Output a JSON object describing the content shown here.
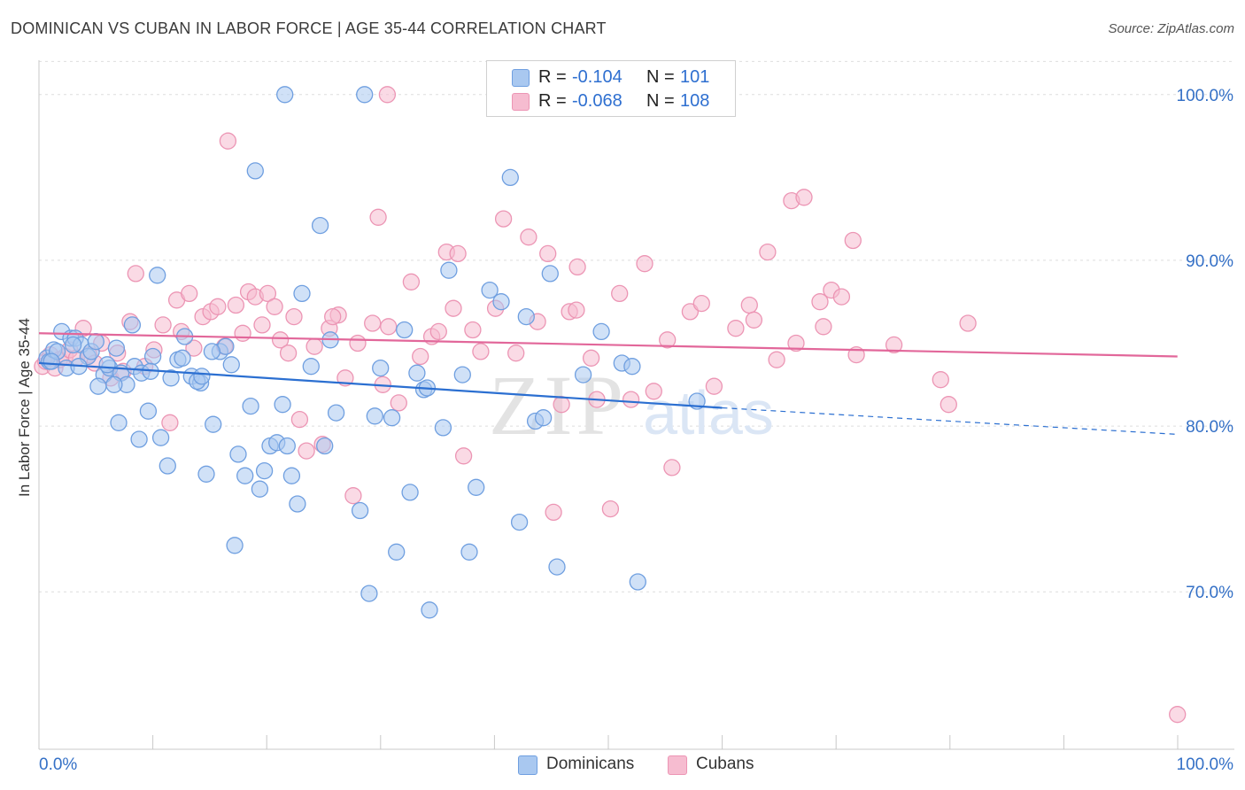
{
  "header": {
    "title": "DOMINICAN VS CUBAN IN LABOR FORCE | AGE 35-44 CORRELATION CHART",
    "source": "Source: ZipAtlas.com"
  },
  "watermark": {
    "zip": "ZIP",
    "atlas": "atlas"
  },
  "legend": {
    "r_label": "R =",
    "n_label": "N =",
    "entries": [
      {
        "name": "Dominicans",
        "r": "-0.104",
        "n": "101"
      },
      {
        "name": "Cubans",
        "r": "-0.068",
        "n": "108"
      }
    ]
  },
  "colors": {
    "dominican_fill": "#a9c8f0",
    "dominican_stroke": "#6f9fe0",
    "dominican_line": "#2b6fd1",
    "cuban_fill": "#f6bcd0",
    "cuban_stroke": "#ec95b4",
    "cuban_line": "#e2679a",
    "axis_text": "#3470c6"
  },
  "chart_data": {
    "type": "scatter",
    "title": "DOMINICAN VS CUBAN IN LABOR FORCE | AGE 35-44 CORRELATION CHART",
    "xlabel": "",
    "ylabel": "In Labor Force | Age 35-44",
    "xlim": [
      0,
      105
    ],
    "ylim": [
      60.5,
      102.5
    ],
    "x_tick_labels": [
      "0.0%",
      "100.0%"
    ],
    "y_ticks": [
      70,
      80,
      90,
      100
    ],
    "y_tick_labels": [
      "70.0%",
      "80.0%",
      "90.0%",
      "100.0%"
    ],
    "grid": true,
    "series": [
      {
        "name": "Dominicans",
        "r": -0.104,
        "n": 101,
        "trend": {
          "x0": 0,
          "y0": 83.8,
          "x1": 60,
          "y1": 81.1,
          "dashed_to_x": 100,
          "dashed_to_y": 79.5
        },
        "points": [
          [
            0.7,
            84.1
          ],
          [
            0.9,
            83.9
          ],
          [
            1.3,
            84.6
          ],
          [
            1.6,
            84.5
          ],
          [
            2.0,
            85.7
          ],
          [
            2.4,
            83.5
          ],
          [
            2.8,
            85.3
          ],
          [
            3.2,
            85.3
          ],
          [
            3.7,
            84.9
          ],
          [
            4.3,
            84.2
          ],
          [
            4.6,
            84.5
          ],
          [
            5.0,
            85.1
          ],
          [
            5.7,
            83.1
          ],
          [
            6.2,
            83.5
          ],
          [
            6.8,
            84.7
          ],
          [
            7.2,
            83.2
          ],
          [
            7.7,
            82.5
          ],
          [
            8.4,
            83.6
          ],
          [
            9.0,
            83.2
          ],
          [
            10.0,
            84.2
          ],
          [
            5.2,
            82.4
          ],
          [
            6.6,
            82.5
          ],
          [
            7.0,
            80.2
          ],
          [
            8.8,
            79.2
          ],
          [
            9.6,
            80.9
          ],
          [
            10.7,
            79.3
          ],
          [
            11.3,
            77.6
          ],
          [
            12.2,
            84.0
          ],
          [
            12.8,
            85.4
          ],
          [
            13.4,
            83.0
          ],
          [
            14.2,
            82.6
          ],
          [
            14.7,
            77.1
          ],
          [
            15.3,
            80.1
          ],
          [
            15.9,
            84.5
          ],
          [
            16.4,
            84.8
          ],
          [
            16.9,
            83.7
          ],
          [
            17.5,
            78.3
          ],
          [
            18.1,
            77.0
          ],
          [
            18.6,
            81.2
          ],
          [
            19.4,
            76.2
          ],
          [
            19.8,
            77.3
          ],
          [
            20.3,
            78.8
          ],
          [
            20.9,
            79.0
          ],
          [
            21.4,
            81.3
          ],
          [
            21.8,
            78.8
          ],
          [
            22.2,
            77.0
          ],
          [
            22.7,
            75.3
          ],
          [
            23.1,
            88.0
          ],
          [
            23.9,
            83.6
          ],
          [
            24.7,
            92.1
          ],
          [
            25.6,
            85.2
          ],
          [
            26.1,
            80.8
          ],
          [
            28.2,
            74.9
          ],
          [
            29.0,
            69.9
          ],
          [
            29.5,
            80.6
          ],
          [
            30.0,
            83.5
          ],
          [
            31.0,
            80.5
          ],
          [
            32.1,
            85.8
          ],
          [
            32.6,
            76.0
          ],
          [
            33.2,
            83.2
          ],
          [
            33.8,
            82.2
          ],
          [
            34.3,
            68.9
          ],
          [
            35.5,
            79.9
          ],
          [
            36.0,
            89.4
          ],
          [
            37.2,
            83.1
          ],
          [
            37.8,
            72.4
          ],
          [
            38.4,
            76.3
          ],
          [
            39.6,
            88.2
          ],
          [
            40.6,
            87.5
          ],
          [
            41.4,
            95.0
          ],
          [
            42.2,
            74.2
          ],
          [
            42.8,
            86.6
          ],
          [
            43.6,
            80.3
          ],
          [
            44.3,
            80.5
          ],
          [
            44.9,
            89.2
          ],
          [
            45.5,
            71.5
          ],
          [
            47.8,
            83.1
          ],
          [
            49.4,
            85.7
          ],
          [
            51.2,
            83.8
          ],
          [
            52.1,
            83.6
          ],
          [
            52.6,
            70.6
          ],
          [
            57.8,
            81.5
          ],
          [
            28.6,
            100.0
          ],
          [
            21.6,
            100.0
          ],
          [
            19.0,
            95.4
          ],
          [
            10.4,
            89.1
          ],
          [
            11.6,
            82.9
          ],
          [
            13.9,
            82.7
          ],
          [
            17.2,
            72.8
          ],
          [
            9.8,
            83.3
          ],
          [
            8.2,
            86.1
          ],
          [
            3.0,
            84.9
          ],
          [
            3.5,
            83.6
          ],
          [
            1.1,
            83.9
          ],
          [
            34.1,
            82.3
          ],
          [
            12.6,
            84.1
          ],
          [
            15.2,
            84.5
          ],
          [
            25.1,
            78.8
          ],
          [
            14.3,
            83.0
          ],
          [
            6.0,
            83.7
          ],
          [
            31.4,
            72.4
          ]
        ]
      },
      {
        "name": "Cubans",
        "r": -0.068,
        "n": 108,
        "trend": {
          "x0": 0,
          "y0": 85.6,
          "x1": 100,
          "y1": 84.2
        },
        "points": [
          [
            0.3,
            83.6
          ],
          [
            0.6,
            83.9
          ],
          [
            1.0,
            84.3
          ],
          [
            1.4,
            83.5
          ],
          [
            1.8,
            84.0
          ],
          [
            2.3,
            84.2
          ],
          [
            2.7,
            84.6
          ],
          [
            3.3,
            84.1
          ],
          [
            3.9,
            85.9
          ],
          [
            4.4,
            84.3
          ],
          [
            4.9,
            83.8
          ],
          [
            5.5,
            85.0
          ],
          [
            6.3,
            82.9
          ],
          [
            6.9,
            84.4
          ],
          [
            7.4,
            83.3
          ],
          [
            8.0,
            86.3
          ],
          [
            8.5,
            89.2
          ],
          [
            9.3,
            83.6
          ],
          [
            10.1,
            84.6
          ],
          [
            10.9,
            86.1
          ],
          [
            11.5,
            80.2
          ],
          [
            12.1,
            87.6
          ],
          [
            12.5,
            85.7
          ],
          [
            13.2,
            88.0
          ],
          [
            13.6,
            84.7
          ],
          [
            14.4,
            86.6
          ],
          [
            15.1,
            86.9
          ],
          [
            15.7,
            87.2
          ],
          [
            16.3,
            84.8
          ],
          [
            16.6,
            97.2
          ],
          [
            17.3,
            87.3
          ],
          [
            17.9,
            85.6
          ],
          [
            18.4,
            88.1
          ],
          [
            19.0,
            87.8
          ],
          [
            19.6,
            86.1
          ],
          [
            20.1,
            88.0
          ],
          [
            20.7,
            87.2
          ],
          [
            21.2,
            85.2
          ],
          [
            21.9,
            84.4
          ],
          [
            22.4,
            86.6
          ],
          [
            22.9,
            80.4
          ],
          [
            23.5,
            78.5
          ],
          [
            24.2,
            84.8
          ],
          [
            24.9,
            78.9
          ],
          [
            25.5,
            85.9
          ],
          [
            26.3,
            86.7
          ],
          [
            26.9,
            82.9
          ],
          [
            27.6,
            75.8
          ],
          [
            28.0,
            85.0
          ],
          [
            29.3,
            86.2
          ],
          [
            29.8,
            92.6
          ],
          [
            30.2,
            82.5
          ],
          [
            30.7,
            86.0
          ],
          [
            31.6,
            81.4
          ],
          [
            32.7,
            88.7
          ],
          [
            33.5,
            84.2
          ],
          [
            34.5,
            85.4
          ],
          [
            35.1,
            85.7
          ],
          [
            35.8,
            90.5
          ],
          [
            36.4,
            87.1
          ],
          [
            36.8,
            90.4
          ],
          [
            37.3,
            78.2
          ],
          [
            38.1,
            85.8
          ],
          [
            38.8,
            84.5
          ],
          [
            40.1,
            87.1
          ],
          [
            40.8,
            92.5
          ],
          [
            41.9,
            84.4
          ],
          [
            43.0,
            91.4
          ],
          [
            43.8,
            86.3
          ],
          [
            44.7,
            90.4
          ],
          [
            45.2,
            74.8
          ],
          [
            45.9,
            81.3
          ],
          [
            46.6,
            86.9
          ],
          [
            47.3,
            89.6
          ],
          [
            48.5,
            84.1
          ],
          [
            49.0,
            81.6
          ],
          [
            50.2,
            75.0
          ],
          [
            51.0,
            88.0
          ],
          [
            52.0,
            81.6
          ],
          [
            53.2,
            89.8
          ],
          [
            54.0,
            82.1
          ],
          [
            55.2,
            85.2
          ],
          [
            55.6,
            77.5
          ],
          [
            57.2,
            86.9
          ],
          [
            58.2,
            87.4
          ],
          [
            59.3,
            82.4
          ],
          [
            61.2,
            85.9
          ],
          [
            62.4,
            87.3
          ],
          [
            62.8,
            86.4
          ],
          [
            64.0,
            90.5
          ],
          [
            64.8,
            84.0
          ],
          [
            66.1,
            93.6
          ],
          [
            66.5,
            85.0
          ],
          [
            67.2,
            93.8
          ],
          [
            68.6,
            87.5
          ],
          [
            68.9,
            86.0
          ],
          [
            69.6,
            88.2
          ],
          [
            70.5,
            87.8
          ],
          [
            71.5,
            91.2
          ],
          [
            71.8,
            84.3
          ],
          [
            75.1,
            84.9
          ],
          [
            79.2,
            82.8
          ],
          [
            79.9,
            81.3
          ],
          [
            81.6,
            86.2
          ],
          [
            100.0,
            62.6
          ],
          [
            30.6,
            100.0
          ],
          [
            25.8,
            86.6
          ],
          [
            47.2,
            87.0
          ]
        ]
      }
    ]
  }
}
